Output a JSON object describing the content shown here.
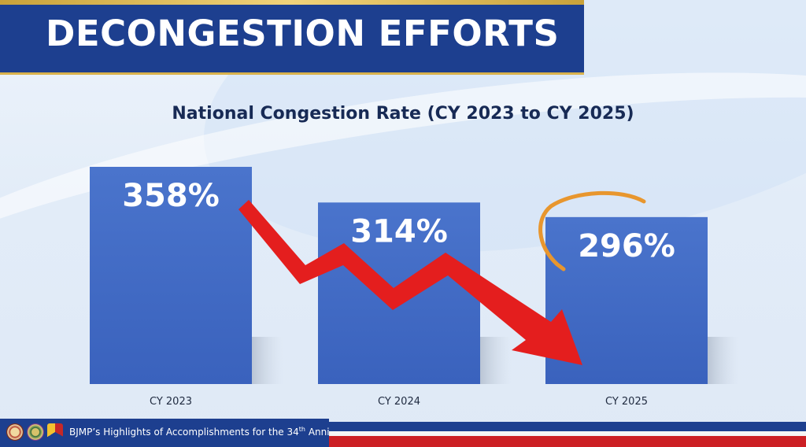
{
  "header": {
    "title": "DECONGESTION EFFORTS"
  },
  "footer": {
    "text_main": "BJMP’s Highlights of Accomplishments for the 34",
    "text_sup": "th",
    "text_end": " Anniversary"
  },
  "colors": {
    "banner": "#1d3f8f",
    "bar": "#4169c4",
    "arrow": "#e41e1e",
    "circle_mark": "#e8962e",
    "footer_red": "#cc1f24"
  },
  "chart_data": {
    "type": "bar",
    "title": "National Congestion Rate (CY 2023 to CY 2025)",
    "categories": [
      "CY 2023",
      "CY 2024",
      "CY 2025"
    ],
    "values": [
      358,
      314,
      296
    ],
    "data_labels": [
      "358%",
      "314%",
      "296%"
    ],
    "unit": "%",
    "ylim": [
      0,
      358
    ],
    "annotations": [
      "downward-red-arrow",
      "orange-circle-around-2025"
    ]
  }
}
